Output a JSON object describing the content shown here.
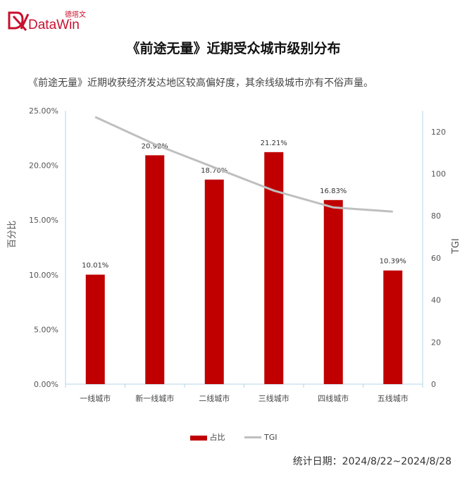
{
  "brand": {
    "logo_text": "DataWin",
    "logo_cn": "德塔文",
    "color": "#c8102e"
  },
  "chart_data": {
    "type": "bar",
    "title": "《前途无量》近期受众城市级别分布",
    "subtitle": "《前途无量》近期收获经济发达地区较高偏好度，其余线级城市亦有不俗声量。",
    "categories": [
      "一线城市",
      "新一线城市",
      "二线城市",
      "三线城市",
      "四线城市",
      "五线城市"
    ],
    "series": [
      {
        "name": "占比",
        "type": "bar",
        "axis": "left",
        "color": "#c00000",
        "values": [
          10.01,
          20.92,
          18.7,
          21.21,
          16.83,
          10.39
        ],
        "labels": [
          "10.01%",
          "20.92%",
          "18.70%",
          "21.21%",
          "16.83%",
          "10.39%"
        ]
      },
      {
        "name": "TGI",
        "type": "line",
        "axis": "right",
        "color": "#bfbfbf",
        "values": [
          127,
          114,
          103,
          92,
          84,
          82
        ]
      }
    ],
    "ylabel": "百分比",
    "y2label": "TGI",
    "ylim": [
      0,
      25
    ],
    "y2lim": [
      0,
      130
    ],
    "yticks": [
      "0.00%",
      "5.00%",
      "10.00%",
      "15.00%",
      "20.00%",
      "25.00%"
    ],
    "y2ticks": [
      "0",
      "20",
      "40",
      "60",
      "80",
      "100",
      "120"
    ],
    "legend_position": "bottom",
    "grid": false
  },
  "footer": {
    "date_text": "统计日期：2024/8/22~2024/8/28"
  }
}
